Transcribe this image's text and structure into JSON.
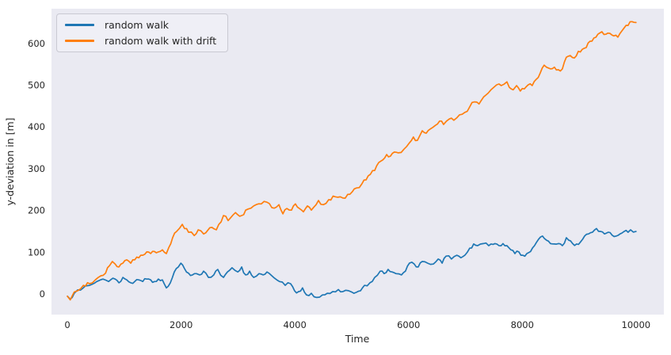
{
  "figure": {
    "background": "#ffffff",
    "axes_background": "#eaeaf2",
    "text_color": "#262626"
  },
  "legend": {
    "position": "upper-left",
    "entries": [
      {
        "label": "random walk",
        "color": "#1f77b4"
      },
      {
        "label": "random walk with drift",
        "color": "#ff7f0e"
      }
    ]
  },
  "chart_data": {
    "type": "line",
    "title": "",
    "xlabel": "Time",
    "ylabel": "y-deviation in [m]",
    "xlim": [
      -280,
      10490
    ],
    "ylim": [
      -49,
      683
    ],
    "x_ticks": [
      0,
      2000,
      4000,
      6000,
      8000,
      10000
    ],
    "y_ticks": [
      0,
      100,
      200,
      300,
      400,
      500,
      600
    ],
    "grid": false,
    "legend_position": "upper left",
    "series": [
      {
        "name": "random walk",
        "color": "#1f77b4",
        "points": [
          [
            0,
            -5
          ],
          [
            50,
            -12
          ],
          [
            120,
            2
          ],
          [
            180,
            10
          ],
          [
            280,
            15
          ],
          [
            390,
            21
          ],
          [
            515,
            30
          ],
          [
            625,
            36
          ],
          [
            725,
            30
          ],
          [
            800,
            38
          ],
          [
            840,
            36
          ],
          [
            905,
            27
          ],
          [
            975,
            40
          ],
          [
            1045,
            34
          ],
          [
            1115,
            27
          ],
          [
            1185,
            30
          ],
          [
            1255,
            34
          ],
          [
            1325,
            30
          ],
          [
            1395,
            36
          ],
          [
            1465,
            34
          ],
          [
            1530,
            30
          ],
          [
            1600,
            36
          ],
          [
            1670,
            34
          ],
          [
            1740,
            15
          ],
          [
            1810,
            27
          ],
          [
            1880,
            53
          ],
          [
            1950,
            65
          ],
          [
            1995,
            74
          ],
          [
            2060,
            61
          ],
          [
            2130,
            50
          ],
          [
            2200,
            46
          ],
          [
            2270,
            49
          ],
          [
            2325,
            46
          ],
          [
            2395,
            55
          ],
          [
            2480,
            40
          ],
          [
            2575,
            46
          ],
          [
            2645,
            59
          ],
          [
            2745,
            40
          ],
          [
            2815,
            53
          ],
          [
            2895,
            63
          ],
          [
            2995,
            53
          ],
          [
            3065,
            65
          ],
          [
            3135,
            46
          ],
          [
            3205,
            55
          ],
          [
            3275,
            40
          ],
          [
            3370,
            49
          ],
          [
            3440,
            46
          ],
          [
            3510,
            53
          ],
          [
            3595,
            44
          ],
          [
            3665,
            36
          ],
          [
            3730,
            30
          ],
          [
            3830,
            21
          ],
          [
            3925,
            25
          ],
          [
            3995,
            8
          ],
          [
            4065,
            6
          ],
          [
            4135,
            15
          ],
          [
            4205,
            -2
          ],
          [
            4290,
            2
          ],
          [
            4385,
            -8
          ],
          [
            4485,
            -2
          ],
          [
            4570,
            2
          ],
          [
            4665,
            6
          ],
          [
            4765,
            11
          ],
          [
            4845,
            6
          ],
          [
            4945,
            8
          ],
          [
            5040,
            2
          ],
          [
            5155,
            8
          ],
          [
            5225,
            21
          ],
          [
            5320,
            27
          ],
          [
            5405,
            40
          ],
          [
            5500,
            55
          ],
          [
            5570,
            49
          ],
          [
            5640,
            59
          ],
          [
            5710,
            53
          ],
          [
            5780,
            49
          ],
          [
            5875,
            46
          ],
          [
            5945,
            55
          ],
          [
            6015,
            74
          ],
          [
            6100,
            72
          ],
          [
            6170,
            65
          ],
          [
            6240,
            78
          ],
          [
            6335,
            74
          ],
          [
            6435,
            72
          ],
          [
            6520,
            84
          ],
          [
            6590,
            74
          ],
          [
            6660,
            91
          ],
          [
            6755,
            84
          ],
          [
            6850,
            93
          ],
          [
            6920,
            87
          ],
          [
            6990,
            93
          ],
          [
            7075,
            110
          ],
          [
            7145,
            120
          ],
          [
            7215,
            116
          ],
          [
            7315,
            121
          ],
          [
            7410,
            116
          ],
          [
            7450,
            120
          ],
          [
            7520,
            121
          ],
          [
            7590,
            116
          ],
          [
            7660,
            121
          ],
          [
            7730,
            116
          ],
          [
            7800,
            106
          ],
          [
            7870,
            97
          ],
          [
            7940,
            101
          ],
          [
            8010,
            93
          ],
          [
            8080,
            97
          ],
          [
            8145,
            102
          ],
          [
            8215,
            116
          ],
          [
            8285,
            131
          ],
          [
            8355,
            139
          ],
          [
            8425,
            129
          ],
          [
            8495,
            121
          ],
          [
            8565,
            120
          ],
          [
            8635,
            121
          ],
          [
            8705,
            116
          ],
          [
            8775,
            135
          ],
          [
            8815,
            129
          ],
          [
            8885,
            121
          ],
          [
            8955,
            120
          ],
          [
            9025,
            125
          ],
          [
            9095,
            139
          ],
          [
            9165,
            144
          ],
          [
            9235,
            148
          ],
          [
            9305,
            157
          ],
          [
            9375,
            150
          ],
          [
            9445,
            144
          ],
          [
            9510,
            148
          ],
          [
            9580,
            141
          ],
          [
            9650,
            139
          ],
          [
            9720,
            144
          ],
          [
            9790,
            150
          ],
          [
            9860,
            148
          ],
          [
            9905,
            154
          ],
          [
            10000,
            150
          ]
        ]
      },
      {
        "name": "random walk with drift",
        "color": "#ff7f0e",
        "points": [
          [
            0,
            -5
          ],
          [
            50,
            -14
          ],
          [
            120,
            5
          ],
          [
            180,
            8
          ],
          [
            280,
            21
          ],
          [
            390,
            25
          ],
          [
            490,
            34
          ],
          [
            590,
            44
          ],
          [
            670,
            50
          ],
          [
            740,
            68
          ],
          [
            790,
            78
          ],
          [
            840,
            72
          ],
          [
            905,
            65
          ],
          [
            975,
            74
          ],
          [
            1045,
            82
          ],
          [
            1115,
            74
          ],
          [
            1185,
            82
          ],
          [
            1255,
            87
          ],
          [
            1325,
            93
          ],
          [
            1395,
            101
          ],
          [
            1465,
            97
          ],
          [
            1530,
            102
          ],
          [
            1600,
            101
          ],
          [
            1670,
            106
          ],
          [
            1740,
            97
          ],
          [
            1785,
            112
          ],
          [
            1850,
            135
          ],
          [
            1920,
            150
          ],
          [
            2020,
            167
          ],
          [
            2060,
            157
          ],
          [
            2130,
            148
          ],
          [
            2230,
            140
          ],
          [
            2300,
            154
          ],
          [
            2395,
            144
          ],
          [
            2505,
            159
          ],
          [
            2620,
            154
          ],
          [
            2745,
            188
          ],
          [
            2825,
            176
          ],
          [
            2955,
            195
          ],
          [
            3065,
            188
          ],
          [
            3135,
            201
          ],
          [
            3275,
            211
          ],
          [
            3410,
            216
          ],
          [
            3510,
            220
          ],
          [
            3595,
            207
          ],
          [
            3720,
            214
          ],
          [
            3790,
            192
          ],
          [
            3860,
            205
          ],
          [
            3940,
            201
          ],
          [
            4010,
            216
          ],
          [
            4080,
            205
          ],
          [
            4150,
            197
          ],
          [
            4220,
            211
          ],
          [
            4290,
            201
          ],
          [
            4415,
            224
          ],
          [
            4500,
            214
          ],
          [
            4595,
            226
          ],
          [
            4710,
            233
          ],
          [
            4845,
            230
          ],
          [
            4970,
            239
          ],
          [
            5085,
            254
          ],
          [
            5180,
            264
          ],
          [
            5290,
            283
          ],
          [
            5405,
            296
          ],
          [
            5475,
            315
          ],
          [
            5545,
            321
          ],
          [
            5615,
            334
          ],
          [
            5680,
            330
          ],
          [
            5750,
            340
          ],
          [
            5820,
            338
          ],
          [
            5920,
            347
          ],
          [
            6015,
            362
          ],
          [
            6085,
            376
          ],
          [
            6155,
            368
          ],
          [
            6240,
            391
          ],
          [
            6310,
            385
          ],
          [
            6380,
            395
          ],
          [
            6475,
            404
          ],
          [
            6545,
            414
          ],
          [
            6615,
            406
          ],
          [
            6715,
            419
          ],
          [
            6795,
            416
          ],
          [
            6895,
            429
          ],
          [
            6990,
            435
          ],
          [
            7075,
            448
          ],
          [
            7160,
            460
          ],
          [
            7240,
            455
          ],
          [
            7320,
            472
          ],
          [
            7400,
            481
          ],
          [
            7450,
            489
          ],
          [
            7550,
            501
          ],
          [
            7630,
            499
          ],
          [
            7730,
            508
          ],
          [
            7770,
            495
          ],
          [
            7840,
            489
          ],
          [
            7900,
            499
          ],
          [
            7965,
            486
          ],
          [
            8035,
            491
          ],
          [
            8105,
            501
          ],
          [
            8175,
            499
          ],
          [
            8245,
            514
          ],
          [
            8315,
            529
          ],
          [
            8385,
            548
          ],
          [
            8425,
            543
          ],
          [
            8495,
            539
          ],
          [
            8565,
            543
          ],
          [
            8635,
            537
          ],
          [
            8705,
            539
          ],
          [
            8775,
            567
          ],
          [
            8845,
            571
          ],
          [
            8915,
            565
          ],
          [
            8985,
            581
          ],
          [
            9055,
            586
          ],
          [
            9125,
            590
          ],
          [
            9190,
            605
          ],
          [
            9260,
            613
          ],
          [
            9330,
            622
          ],
          [
            9400,
            628
          ],
          [
            9470,
            622
          ],
          [
            9540,
            624
          ],
          [
            9610,
            618
          ],
          [
            9680,
            615
          ],
          [
            9720,
            624
          ],
          [
            9790,
            637
          ],
          [
            9860,
            643
          ],
          [
            9930,
            652
          ],
          [
            10000,
            650
          ]
        ]
      }
    ]
  }
}
